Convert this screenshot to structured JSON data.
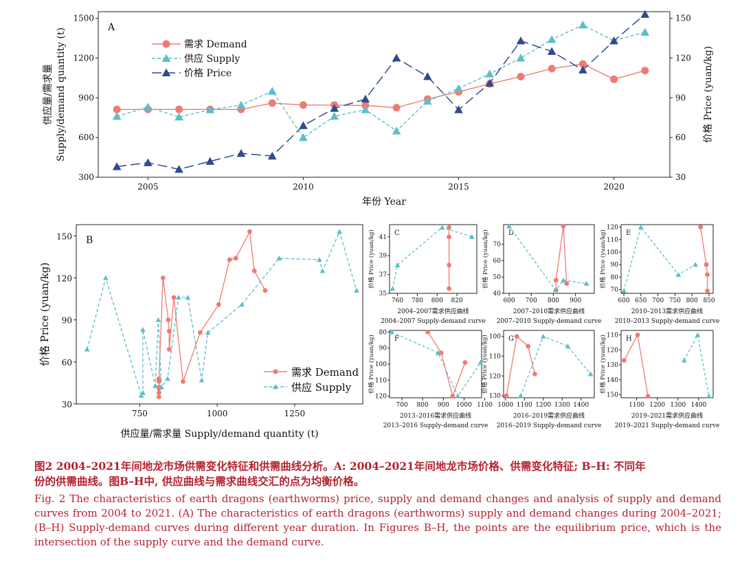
{
  "caption": {
    "zh_line1": "图2 2004–2021年间地龙市场供需变化特征和供需曲线分析。A: 2004–2021年间地龙市场价格、供需变化特征; B–H: 不同年",
    "zh_line2": "份的供需曲线。图B–H中, 供应曲线与需求曲线交汇的点为均衡价格。",
    "en_label": "Fig. 2",
    "en_text": "The characteristics of earth dragons (earthworms) price, supply and demand changes and analysis of supply and demand curves from 2004 to 2021. (A) The characteristics of earth dragons (earthworms) supply and demand changes during 2004–2021; (B–H) Supply-demand curves during different year duration. In Figures B–H, the points are the equilibrium price, which is the intersection of the supply curve and the demand curve."
  },
  "colors": {
    "demand": "#f07b72",
    "supply": "#5bbfc9",
    "price": "#2f4b8f"
  },
  "chart_data": [
    {
      "panel": "A",
      "type": "line",
      "grid": false,
      "legend_position": "top-left",
      "x": [
        2004,
        2005,
        2006,
        2007,
        2008,
        2009,
        2010,
        2011,
        2012,
        2013,
        2014,
        2015,
        2016,
        2017,
        2018,
        2019,
        2020,
        2021
      ],
      "xlim": [
        2003.4,
        2021.8
      ],
      "xticks": [
        2005,
        2010,
        2015,
        2020
      ],
      "xlabel": "年份 Year",
      "ylabel_left": "供应量/需求量 Supply/demand quantity (t)",
      "ylabel_right": "价格 Price (yuan/kg)",
      "ylim_left": [
        300,
        1550
      ],
      "yticks_left": [
        300,
        600,
        900,
        1200,
        1500
      ],
      "ylim_right": [
        30,
        155
      ],
      "yticks_right": [
        30,
        60,
        90,
        120,
        150
      ],
      "series": [
        {
          "name": "需求 Demand",
          "axis": "left",
          "marker": "circle",
          "values": [
            812,
            812,
            812,
            812,
            812,
            860,
            845,
            845,
            842,
            825,
            890,
            945,
            1005,
            1060,
            1120,
            1155,
            1040,
            1105
          ]
        },
        {
          "name": "供应 Supply",
          "axis": "left",
          "marker": "triangle",
          "values": [
            760,
            830,
            755,
            810,
            845,
            950,
            600,
            760,
            810,
            650,
            875,
            970,
            1080,
            1200,
            1340,
            1450,
            1330,
            1395
          ]
        },
        {
          "name": "价格 Price",
          "axis": "right",
          "marker": "triangle",
          "values": [
            38,
            41,
            36,
            42,
            48,
            46,
            69,
            82,
            89,
            120,
            106,
            81,
            101,
            133,
            125,
            111,
            133,
            153
          ]
        }
      ]
    },
    {
      "panel": "B",
      "type": "line",
      "grid": false,
      "legend_position": "bottom-right",
      "xlabel": "供应量/需求量 Supply/demand quantity (t)",
      "ylabel": "价格 Price (yuan/kg)",
      "xlim": [
        545,
        1470
      ],
      "xticks": [
        750,
        1000,
        1250
      ],
      "ylim": [
        30,
        158
      ],
      "yticks": [
        30,
        60,
        90,
        120,
        150
      ],
      "series": [
        {
          "name": "需求 Demand",
          "marker": "circle",
          "x": [
            812,
            812,
            812,
            812,
            812,
            812,
            812,
            825,
            842,
            845,
            845,
            860,
            890,
            945,
            1005,
            1040,
            1060,
            1105,
            1120,
            1155
          ],
          "y": [
            35,
            38,
            41,
            42,
            46,
            47,
            48,
            120,
            90,
            82,
            69,
            106,
            46,
            81,
            101,
            133,
            134,
            153,
            125,
            111
          ]
        },
        {
          "name": "供应 Supply",
          "marker": "triangle",
          "x": [
            580,
            640,
            755,
            760,
            760,
            800,
            810,
            820,
            840,
            875,
            905,
            950,
            970,
            1080,
            1200,
            1330,
            1340,
            1395,
            1450
          ],
          "y": [
            69,
            120,
            36,
            38,
            83,
            43,
            90,
            42,
            48,
            106,
            106,
            47,
            81,
            101,
            134,
            133,
            125,
            153,
            111
          ]
        }
      ]
    },
    {
      "panel": "C",
      "type": "line",
      "caption_zh": "2004–2007需求供应曲线",
      "caption_en": "2004–2007 Supply-demand curve",
      "ylabel": "价格 Price (yuan/kg)",
      "xlim": [
        752,
        840
      ],
      "xticks": [
        760,
        780,
        800,
        820
      ],
      "ylim": [
        35,
        42.3
      ],
      "yticks": [
        35,
        37,
        39,
        41
      ],
      "series": [
        {
          "name": "需求 Demand",
          "marker": "circle",
          "x": [
            812,
            812,
            812,
            812
          ],
          "y": [
            42,
            41,
            38,
            35.5
          ]
        },
        {
          "name": "供应 Supply",
          "marker": "triangle",
          "x": [
            755,
            760,
            805,
            835
          ],
          "y": [
            35.5,
            38,
            42,
            41
          ]
        }
      ]
    },
    {
      "panel": "D",
      "type": "line",
      "caption_zh": "2007–2010需求供应曲线",
      "caption_en": "2007–2010 Supply-demand curve",
      "ylabel": "价格 Price (yuan/kg)",
      "xlim": [
        575,
        985
      ],
      "xticks": [
        600,
        700,
        800,
        900
      ],
      "ylim": [
        40,
        82
      ],
      "yticks": [
        40,
        50,
        60,
        70
      ],
      "series": [
        {
          "name": "需求 Demand",
          "marker": "circle",
          "x": [
            812,
            812,
            845,
            860
          ],
          "y": [
            42,
            48,
            81,
            46
          ]
        },
        {
          "name": "供应 Supply",
          "marker": "triangle",
          "x": [
            600,
            810,
            845,
            950
          ],
          "y": [
            81,
            42,
            48,
            46
          ]
        }
      ]
    },
    {
      "panel": "E",
      "type": "line",
      "caption_zh": "2010–2013需求供应曲线",
      "caption_en": "2010–2013 Supply-demand curve",
      "ylabel": "价格 Price (yuan/kg)",
      "xlim": [
        592,
        862
      ],
      "xticks": [
        600,
        650,
        700,
        750,
        800,
        850
      ],
      "ylim": [
        67,
        122
      ],
      "yticks": [
        70,
        80,
        90,
        100,
        110,
        120
      ],
      "series": [
        {
          "name": "需求 Demand",
          "marker": "circle",
          "x": [
            825,
            842,
            845,
            845
          ],
          "y": [
            120,
            90,
            82,
            69
          ]
        },
        {
          "name": "供应 Supply",
          "marker": "triangle",
          "x": [
            600,
            650,
            760,
            810
          ],
          "y": [
            69,
            120,
            82,
            90
          ]
        }
      ]
    },
    {
      "panel": "F",
      "type": "line",
      "caption_zh": "2013–2016需求供应曲线",
      "caption_en": "2013–2016 Supply-demand curve",
      "ylabel": "价格 Price (yuan/kg)",
      "y_reversed": true,
      "xlim": [
        640,
        1085
      ],
      "xticks": [
        700,
        800,
        900,
        1000,
        1100
      ],
      "ylim": [
        79,
        121
      ],
      "yticks": [
        80,
        90,
        100,
        110,
        120
      ],
      "series": [
        {
          "name": "需求 Demand",
          "marker": "circle",
          "x": [
            825,
            890,
            945,
            1005
          ],
          "y": [
            80,
            93,
            120,
            99
          ]
        },
        {
          "name": "供应 Supply",
          "marker": "triangle",
          "x": [
            650,
            875,
            970,
            1080
          ],
          "y": [
            80,
            93,
            120,
            99
          ]
        }
      ]
    },
    {
      "panel": "G",
      "type": "line",
      "caption_zh": "2016–2019需求供应曲线",
      "caption_en": "2016–2019 Supply-demand curve",
      "ylabel": "价格 Price (yuan/kg)",
      "y_reversed": true,
      "xlim": [
        990,
        1470
      ],
      "xticks": [
        1000,
        1100,
        1200,
        1300,
        1400
      ],
      "ylim": [
        97,
        131
      ],
      "yticks": [
        100,
        110,
        120,
        130
      ],
      "series": [
        {
          "name": "需求 Demand",
          "marker": "circle",
          "x": [
            1005,
            1060,
            1120,
            1155
          ],
          "y": [
            130,
            100,
            105,
            119
          ]
        },
        {
          "name": "供应 Supply",
          "marker": "triangle",
          "x": [
            1080,
            1200,
            1330,
            1450
          ],
          "y": [
            130,
            100,
            105,
            119
          ]
        }
      ]
    },
    {
      "panel": "H",
      "type": "line",
      "caption_zh": "2019–2021需求供应曲线",
      "caption_en": "2019–2021 Supply-demand curve",
      "ylabel": "价格 Price (yuan/kg)",
      "y_reversed": true,
      "xlim": [
        1025,
        1470
      ],
      "xticks": [
        1100,
        1200,
        1300,
        1400
      ],
      "ylim": [
        107,
        152
      ],
      "yticks": [
        110,
        120,
        130,
        140,
        150
      ],
      "series": [
        {
          "name": "需求 Demand",
          "marker": "circle",
          "x": [
            1040,
            1105,
            1155
          ],
          "y": [
            127,
            110,
            151
          ]
        },
        {
          "name": "供应 Supply",
          "marker": "triangle",
          "x": [
            1330,
            1395,
            1450
          ],
          "y": [
            127,
            110,
            151
          ]
        }
      ]
    }
  ]
}
